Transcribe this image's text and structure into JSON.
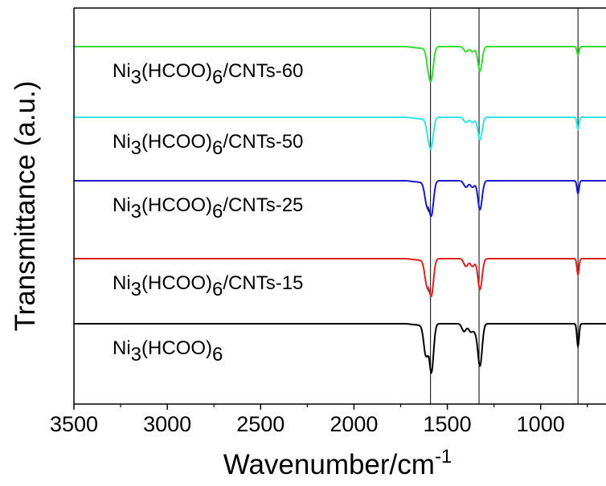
{
  "chart_data": {
    "type": "line",
    "title": "",
    "xlabel": "Wavenumber/cm",
    "xlabel_sup": "-1",
    "ylabel": "Transmittance (a.u.)",
    "xlim": [
      3500,
      650
    ],
    "x_reversed": true,
    "x_ticks": [
      3500,
      3000,
      2500,
      2000,
      1500,
      1000
    ],
    "y_ticks_shown": false,
    "grid": false,
    "legend": "inline labels, left of each trace",
    "reference_lines_x": [
      1590,
      1330,
      800
    ],
    "series": [
      {
        "name": "Ni3(HCOO)6/CNTs-60",
        "label_parts": [
          "Ni",
          "3",
          "(HCOO)",
          "6",
          "/CNTs-60"
        ],
        "color": "#33dd33",
        "baseline": 4,
        "dips": [
          [
            1600,
            0.25
          ],
          [
            1585,
            0.42
          ],
          [
            1400,
            0.08
          ],
          [
            1365,
            0.08
          ],
          [
            1325,
            0.38
          ],
          [
            800,
            0.13
          ]
        ]
      },
      {
        "name": "Ni3(HCOO)6/CNTs-50",
        "label_parts": [
          "Ni",
          "3",
          "(HCOO)",
          "6",
          "/CNTs-50"
        ],
        "color": "#33e6e6",
        "baseline": 3,
        "dips": [
          [
            1600,
            0.22
          ],
          [
            1585,
            0.38
          ],
          [
            1400,
            0.08
          ],
          [
            1365,
            0.08
          ],
          [
            1325,
            0.35
          ],
          [
            800,
            0.18
          ]
        ]
      },
      {
        "name": "Ni3(HCOO)6/CNTs-25",
        "label_parts": [
          "Ni",
          "3",
          "(HCOO)",
          "6",
          "/CNTs-25"
        ],
        "color": "#1a1acc",
        "baseline": 2,
        "dips": [
          [
            1610,
            0.32
          ],
          [
            1585,
            0.52
          ],
          [
            1400,
            0.1
          ],
          [
            1365,
            0.1
          ],
          [
            1325,
            0.45
          ],
          [
            800,
            0.2
          ]
        ]
      },
      {
        "name": "Ni3(HCOO)6/CNTs-15",
        "label_parts": [
          "Ni",
          "3",
          "(HCOO)",
          "6",
          "/CNTs-15"
        ],
        "color": "#dd2222",
        "baseline": 1,
        "dips": [
          [
            1610,
            0.35
          ],
          [
            1585,
            0.55
          ],
          [
            1400,
            0.12
          ],
          [
            1365,
            0.12
          ],
          [
            1325,
            0.48
          ],
          [
            800,
            0.25
          ]
        ]
      },
      {
        "name": "Ni3(HCOO)6",
        "label_parts": [
          "Ni",
          "3",
          "(HCOO)",
          "6",
          ""
        ],
        "color": "#000000",
        "baseline": 0,
        "dips": [
          [
            1615,
            0.45
          ],
          [
            1585,
            0.75
          ],
          [
            1410,
            0.12
          ],
          [
            1375,
            0.12
          ],
          [
            1350,
            0.1
          ],
          [
            1325,
            0.65
          ],
          [
            800,
            0.35
          ]
        ]
      }
    ]
  }
}
